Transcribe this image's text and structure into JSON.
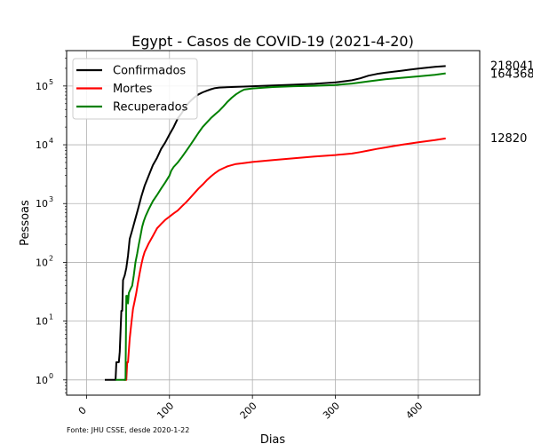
{
  "chart_data": {
    "type": "line",
    "title": "Egypt - Casos de COVID-19 (2021-4-20)",
    "xlabel": "Dias",
    "ylabel": "Pessoas",
    "yscale": "log",
    "xlim": [
      -24,
      474
    ],
    "ylim": [
      0.55,
      400000
    ],
    "grid": true,
    "legend_position": "top-left",
    "xticks": [
      0,
      100,
      200,
      300,
      400
    ],
    "xtick_labels": [
      "0",
      "100",
      "200",
      "300",
      "400"
    ],
    "yticks": [
      1,
      10,
      100,
      1000,
      10000,
      100000
    ],
    "source_note": "Fonte: JHU CSSE, desde 2020-1-22",
    "series": [
      {
        "name": "Confirmados",
        "color": "#000000",
        "end_label": "218041",
        "points": [
          [
            22,
            1
          ],
          [
            35,
            1
          ],
          [
            36,
            2
          ],
          [
            39,
            2
          ],
          [
            40,
            3
          ],
          [
            42,
            15
          ],
          [
            43,
            15
          ],
          [
            44,
            50
          ],
          [
            46,
            60
          ],
          [
            48,
            80
          ],
          [
            50,
            130
          ],
          [
            52,
            250
          ],
          [
            55,
            350
          ],
          [
            58,
            500
          ],
          [
            62,
            800
          ],
          [
            66,
            1300
          ],
          [
            70,
            2000
          ],
          [
            75,
            3000
          ],
          [
            80,
            4500
          ],
          [
            85,
            6000
          ],
          [
            90,
            8500
          ],
          [
            95,
            11000
          ],
          [
            100,
            15000
          ],
          [
            105,
            20000
          ],
          [
            110,
            28000
          ],
          [
            115,
            35000
          ],
          [
            120,
            46000
          ],
          [
            125,
            55000
          ],
          [
            130,
            64000
          ],
          [
            135,
            72000
          ],
          [
            140,
            78000
          ],
          [
            145,
            83000
          ],
          [
            150,
            88000
          ],
          [
            155,
            92000
          ],
          [
            160,
            94000
          ],
          [
            175,
            96000
          ],
          [
            200,
            99000
          ],
          [
            225,
            102000
          ],
          [
            250,
            105000
          ],
          [
            275,
            109000
          ],
          [
            300,
            115000
          ],
          [
            310,
            120000
          ],
          [
            320,
            125000
          ],
          [
            330,
            135000
          ],
          [
            340,
            150000
          ],
          [
            350,
            160000
          ],
          [
            360,
            168000
          ],
          [
            370,
            175000
          ],
          [
            380,
            182000
          ],
          [
            390,
            190000
          ],
          [
            400,
            198000
          ],
          [
            410,
            205000
          ],
          [
            420,
            212000
          ],
          [
            433,
            218041
          ]
        ]
      },
      {
        "name": "Mortes",
        "color": "#ff0000",
        "end_label": "12820",
        "points": [
          [
            45,
            1
          ],
          [
            48,
            1
          ],
          [
            49,
            2
          ],
          [
            50,
            2
          ],
          [
            52,
            5
          ],
          [
            54,
            9
          ],
          [
            56,
            16
          ],
          [
            58,
            22
          ],
          [
            60,
            30
          ],
          [
            62,
            45
          ],
          [
            64,
            65
          ],
          [
            66,
            90
          ],
          [
            68,
            120
          ],
          [
            70,
            150
          ],
          [
            75,
            210
          ],
          [
            80,
            280
          ],
          [
            85,
            380
          ],
          [
            90,
            450
          ],
          [
            95,
            530
          ],
          [
            100,
            600
          ],
          [
            105,
            680
          ],
          [
            110,
            760
          ],
          [
            115,
            900
          ],
          [
            120,
            1050
          ],
          [
            125,
            1250
          ],
          [
            130,
            1500
          ],
          [
            135,
            1800
          ],
          [
            140,
            2100
          ],
          [
            145,
            2500
          ],
          [
            150,
            2900
          ],
          [
            155,
            3300
          ],
          [
            160,
            3700
          ],
          [
            165,
            4000
          ],
          [
            170,
            4300
          ],
          [
            180,
            4700
          ],
          [
            190,
            4900
          ],
          [
            200,
            5100
          ],
          [
            225,
            5500
          ],
          [
            250,
            5900
          ],
          [
            275,
            6300
          ],
          [
            300,
            6700
          ],
          [
            310,
            6900
          ],
          [
            320,
            7100
          ],
          [
            330,
            7500
          ],
          [
            340,
            8000
          ],
          [
            350,
            8500
          ],
          [
            360,
            9000
          ],
          [
            370,
            9500
          ],
          [
            380,
            10000
          ],
          [
            390,
            10500
          ],
          [
            400,
            11000
          ],
          [
            410,
            11500
          ],
          [
            420,
            12000
          ],
          [
            433,
            12820
          ]
        ]
      },
      {
        "name": "Recuperados",
        "color": "#008000",
        "end_label": "164368",
        "points": [
          [
            35,
            1
          ],
          [
            47,
            1
          ],
          [
            48,
            27
          ],
          [
            49,
            27
          ],
          [
            50,
            20
          ],
          [
            51,
            30
          ],
          [
            53,
            35
          ],
          [
            55,
            40
          ],
          [
            57,
            60
          ],
          [
            59,
            100
          ],
          [
            61,
            140
          ],
          [
            63,
            200
          ],
          [
            65,
            280
          ],
          [
            67,
            400
          ],
          [
            69,
            500
          ],
          [
            71,
            600
          ],
          [
            75,
            800
          ],
          [
            80,
            1100
          ],
          [
            85,
            1400
          ],
          [
            90,
            1800
          ],
          [
            95,
            2300
          ],
          [
            100,
            3000
          ],
          [
            102,
            3600
          ],
          [
            105,
            4200
          ],
          [
            110,
            5000
          ],
          [
            115,
            6200
          ],
          [
            120,
            7800
          ],
          [
            125,
            9800
          ],
          [
            130,
            12500
          ],
          [
            135,
            16000
          ],
          [
            140,
            20000
          ],
          [
            145,
            24000
          ],
          [
            150,
            28500
          ],
          [
            155,
            33000
          ],
          [
            160,
            38000
          ],
          [
            165,
            45000
          ],
          [
            170,
            54000
          ],
          [
            175,
            63000
          ],
          [
            180,
            72000
          ],
          [
            185,
            80000
          ],
          [
            190,
            87000
          ],
          [
            200,
            91000
          ],
          [
            225,
            96000
          ],
          [
            250,
            99000
          ],
          [
            275,
            101000
          ],
          [
            300,
            104000
          ],
          [
            320,
            110000
          ],
          [
            340,
            120000
          ],
          [
            360,
            130000
          ],
          [
            380,
            138000
          ],
          [
            400,
            146000
          ],
          [
            420,
            155000
          ],
          [
            433,
            164368
          ]
        ]
      }
    ]
  }
}
